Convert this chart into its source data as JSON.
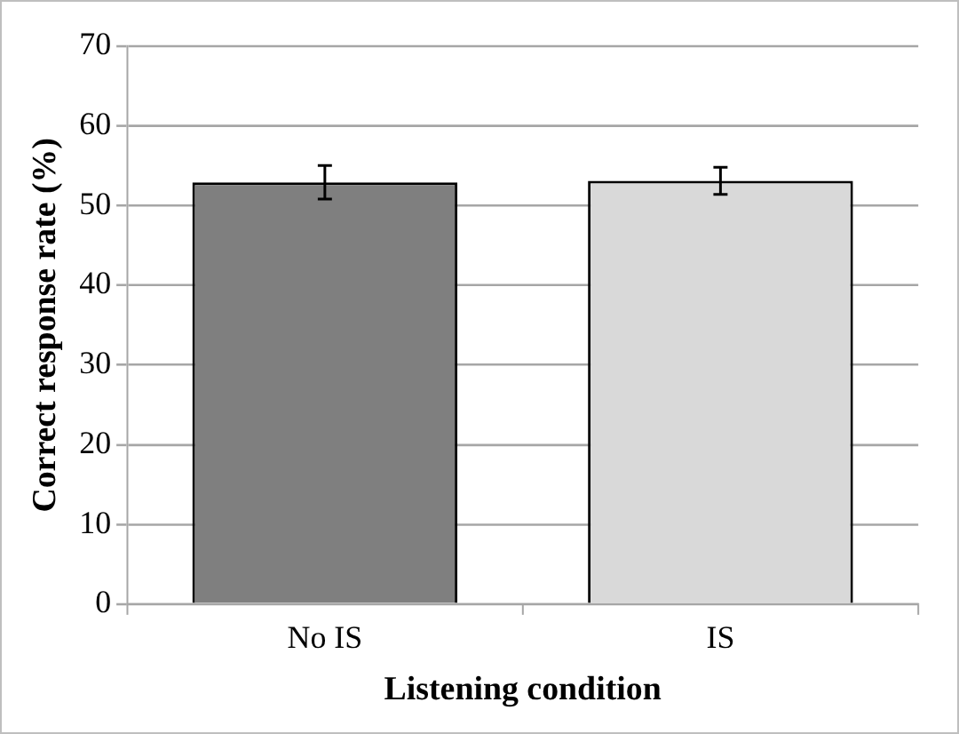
{
  "chart_data": {
    "type": "bar",
    "xlabel": "Listening condition",
    "ylabel": "Correct response rate (%)",
    "categories": [
      "No IS",
      "IS"
    ],
    "values": [
      52.9,
      53.1
    ],
    "colors": [
      "#7f7f7f",
      "#d9d9d9"
    ],
    "errors": [
      2.1,
      1.7
    ],
    "ylim": [
      0,
      70
    ],
    "yticks": [
      0,
      10,
      20,
      30,
      40,
      50,
      60,
      70
    ],
    "grid": "y",
    "legend": false
  }
}
